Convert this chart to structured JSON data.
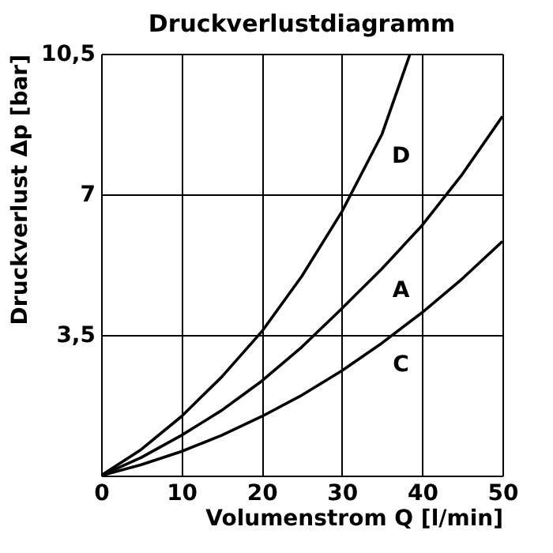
{
  "chart_data": {
    "type": "line",
    "title": "Druckverlustdiagramm",
    "xlabel": "Volumenstrom Q [l/min]",
    "ylabel": "Druckverlust Δp [bar]",
    "series": [
      {
        "name": "D",
        "color": "#000000",
        "x": [
          0,
          5,
          10,
          15,
          20,
          25,
          30,
          35,
          38.5
        ],
        "values": [
          0,
          0.65,
          1.47,
          2.45,
          3.58,
          4.96,
          6.57,
          8.5,
          10.5
        ]
      },
      {
        "name": "A",
        "color": "#000000",
        "x": [
          0,
          5,
          10,
          15,
          20,
          25,
          30,
          35,
          40,
          45,
          50
        ],
        "values": [
          0,
          0.45,
          1.0,
          1.62,
          2.35,
          3.2,
          4.16,
          5.15,
          6.23,
          7.5,
          8.94
        ]
      },
      {
        "name": "C",
        "color": "#000000",
        "x": [
          0,
          5,
          10,
          15,
          20,
          25,
          30,
          35,
          40,
          45,
          50
        ],
        "values": [
          0,
          0.27,
          0.6,
          1.0,
          1.47,
          2.0,
          2.61,
          3.3,
          4.06,
          4.9,
          5.83
        ]
      }
    ],
    "xlim": [
      0,
      50
    ],
    "xticks": [
      0,
      10,
      20,
      30,
      40,
      50
    ],
    "ylim": [
      0,
      10.5
    ],
    "yticks": [
      {
        "value": 0,
        "label": null
      },
      {
        "value": 3.5,
        "label": "3,5"
      },
      {
        "value": 7,
        "label": "7"
      },
      {
        "value": 10.5,
        "label": "10,5"
      }
    ],
    "grid": true,
    "legend": false,
    "marker": "none",
    "line_style": "solid"
  }
}
